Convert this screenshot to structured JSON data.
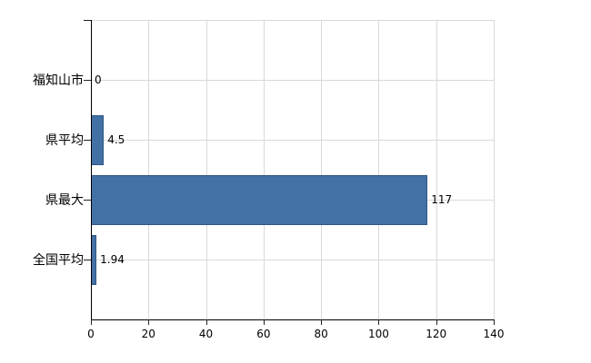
{
  "chart_data": {
    "type": "bar",
    "orientation": "horizontal",
    "title": "",
    "xlabel": "",
    "ylabel": "",
    "categories": [
      "福知山市",
      "県平均",
      "県最大",
      "全国平均"
    ],
    "values": [
      0,
      4.5,
      117,
      1.94
    ],
    "value_labels": [
      "0",
      "4.5",
      "117",
      "1.94"
    ],
    "x_ticks": [
      0,
      20,
      40,
      60,
      80,
      100,
      120,
      140
    ],
    "xlim": [
      0,
      140
    ],
    "grid": true,
    "legend": "none",
    "bar_color": "#4271a6",
    "bar_border_color": "#2e5585",
    "grid_color": "#d9d9d9",
    "axis_color": "#000000",
    "text_color": "#000000",
    "background_color": "#ffffff"
  }
}
